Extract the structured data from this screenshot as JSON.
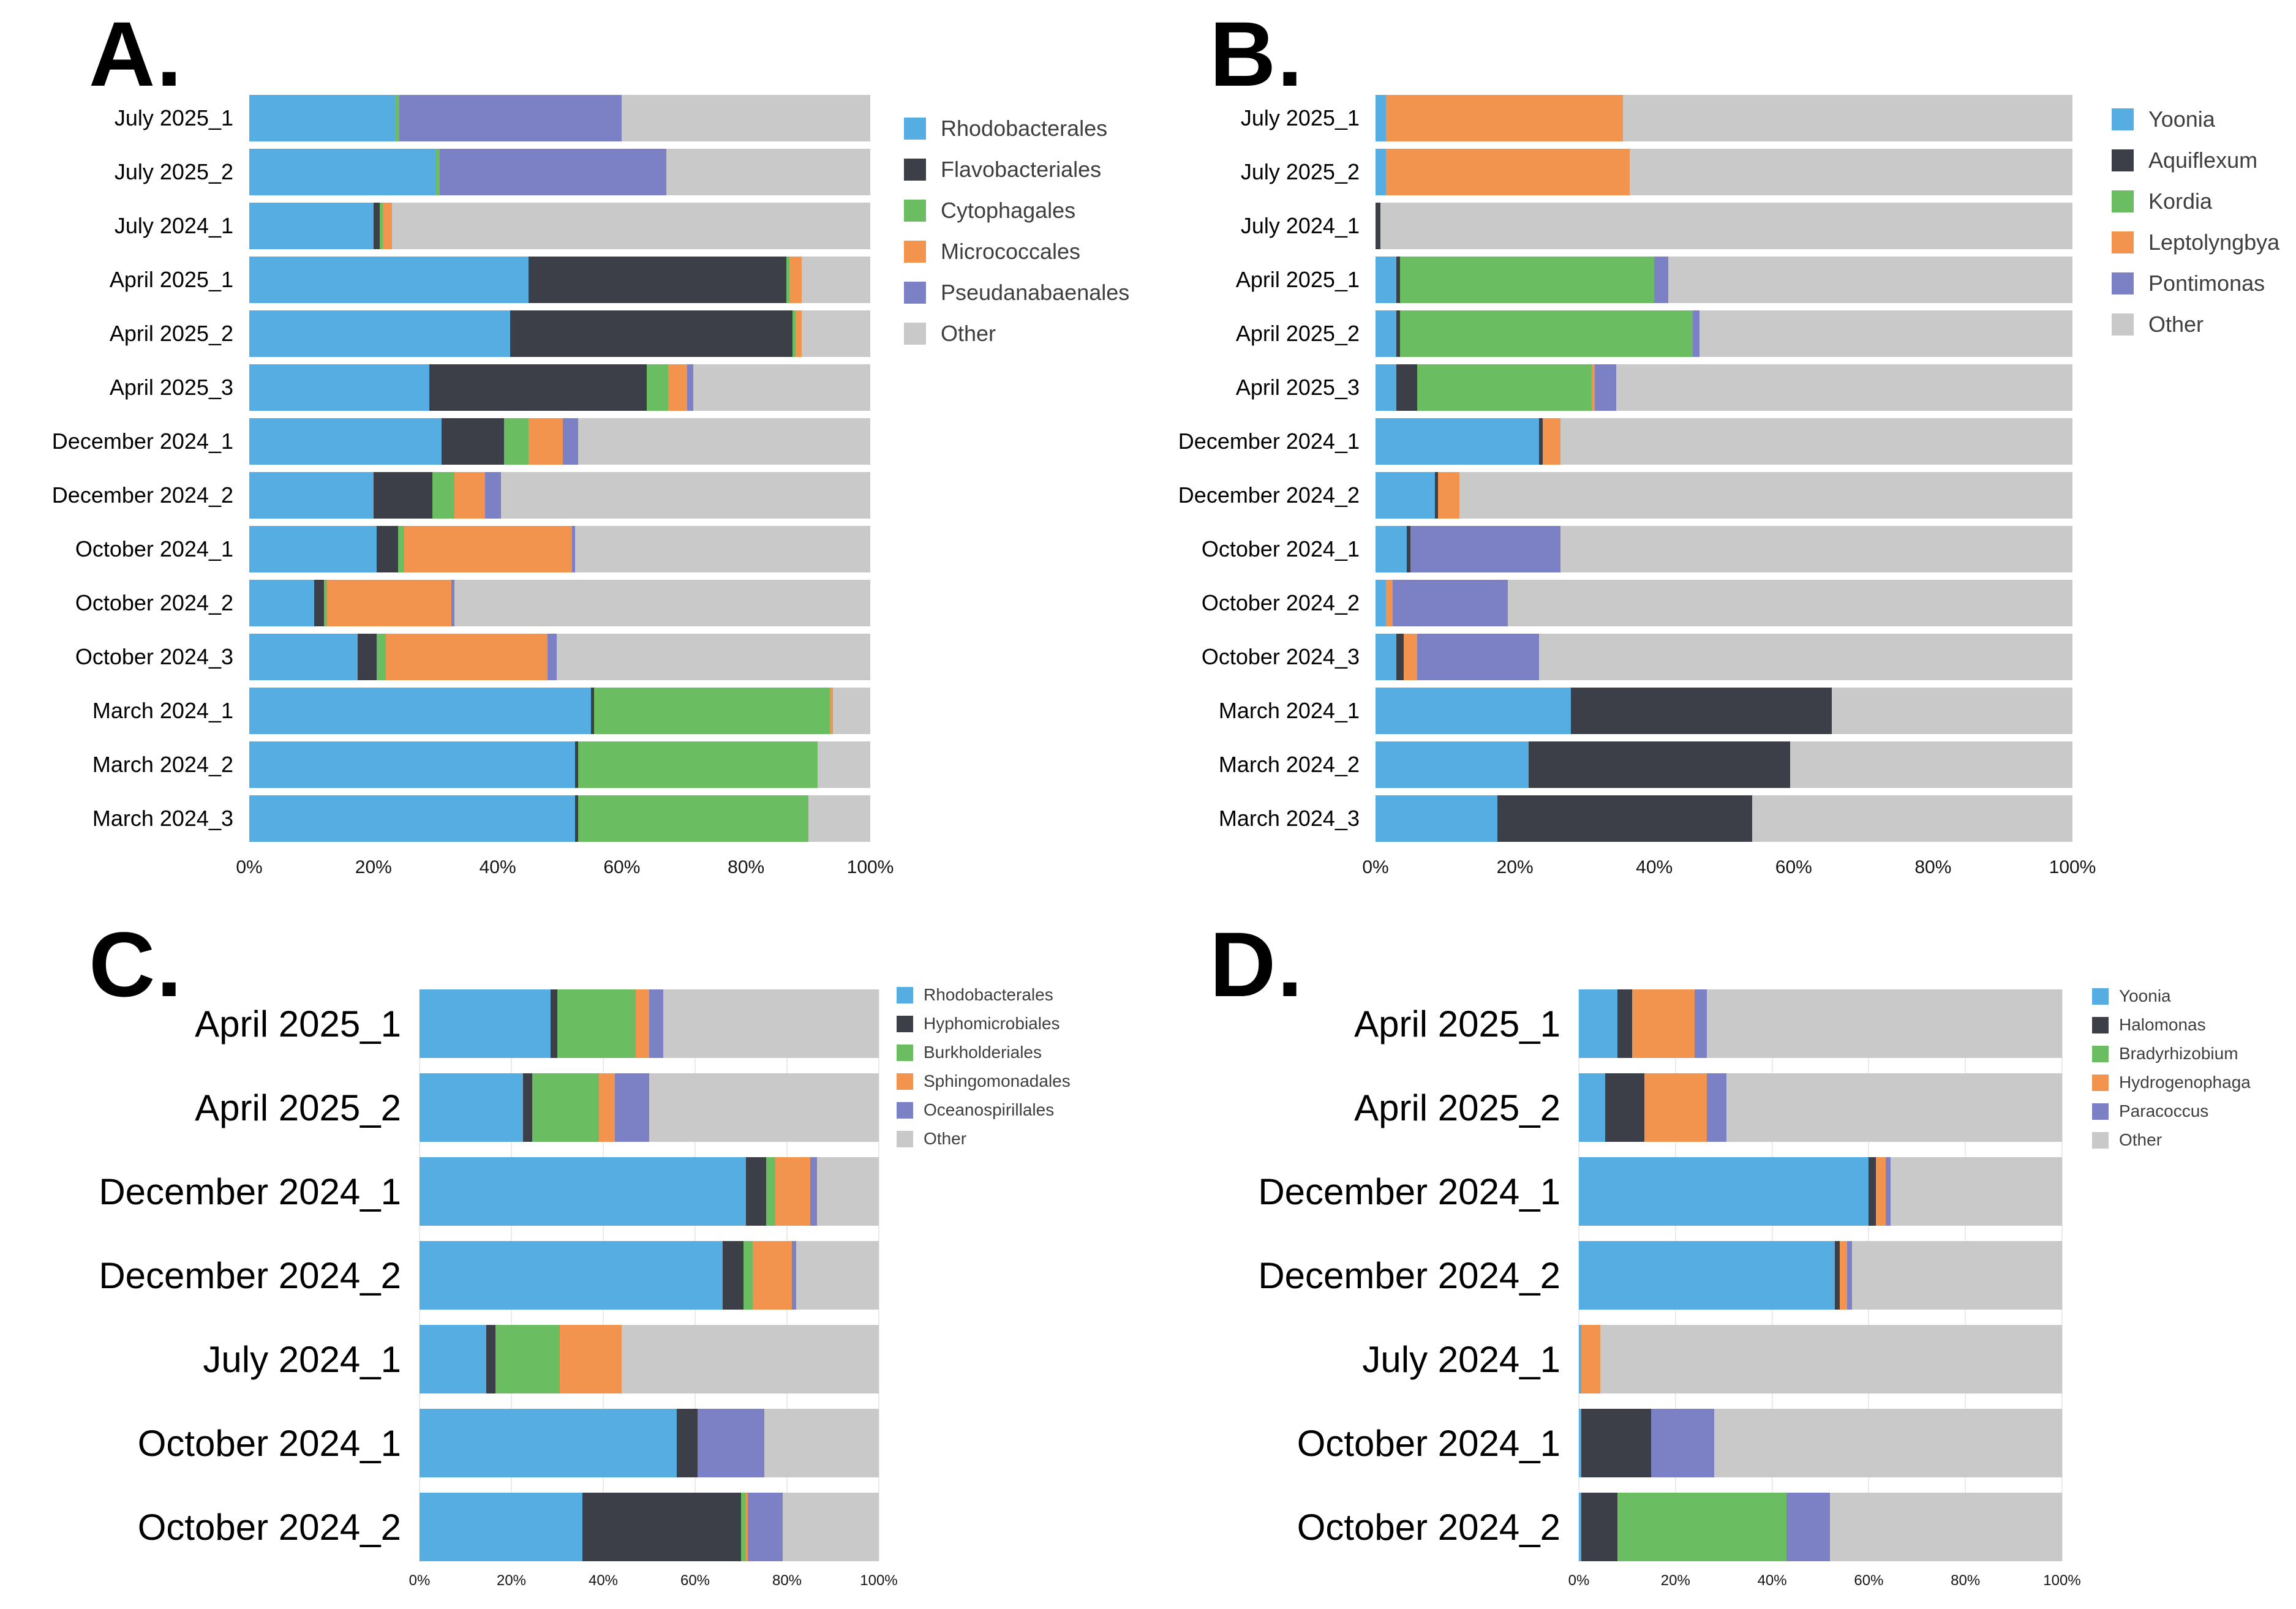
{
  "chart_data": [
    {
      "type": "bar",
      "panel_letter": "A.",
      "orientation": "horizontal",
      "stacked": true,
      "xlim": [
        0,
        100
      ],
      "x_ticks": [
        "0%",
        "20%",
        "40%",
        "60%",
        "80%",
        "100%"
      ],
      "legend_position": "right",
      "categories": [
        "July 2025_1",
        "July 2025_2",
        "July 2024_1",
        "April 2025_1",
        "April 2025_2",
        "April 2025_3",
        "December 2024_1",
        "December 2024_2",
        "October 2024_1",
        "October 2024_2",
        "October 2024_3",
        "March 2024_1",
        "March 2024_2",
        "March 2024_3"
      ],
      "series": [
        {
          "name": "Rhodobacterales",
          "color": "#55ade1",
          "values": [
            23.5,
            30,
            20,
            45,
            42,
            29,
            31,
            20,
            20.5,
            10.5,
            17.5,
            55,
            52.5,
            52.5
          ]
        },
        {
          "name": "Flavobacteriales",
          "color": "#3d3f48",
          "values": [
            0,
            0,
            1,
            41.5,
            45.5,
            35,
            10,
            9.5,
            3.5,
            1.5,
            3,
            0.5,
            0.5,
            0.5
          ]
        },
        {
          "name": "Cytophagales",
          "color": "#6abd60",
          "values": [
            0.7,
            0.7,
            0.5,
            0.5,
            0.5,
            3.5,
            4,
            3.5,
            1,
            0.5,
            1.5,
            38,
            38.5,
            37
          ]
        },
        {
          "name": "Micrococcales",
          "color": "#f3944e",
          "values": [
            0,
            0,
            1.5,
            2,
            1,
            3,
            5.5,
            5,
            27,
            20,
            26,
            0.5,
            0,
            0
          ]
        },
        {
          "name": "Pseudanabaenales",
          "color": "#7c80c4",
          "values": [
            35.8,
            36.5,
            0,
            0,
            0,
            1,
            2.5,
            2.5,
            0.5,
            0.5,
            1.5,
            0,
            0,
            0
          ]
        },
        {
          "name": "Other",
          "color": "#c9c9c9",
          "values": [
            40,
            32.8,
            77,
            11,
            11,
            28.5,
            47,
            59.5,
            47.5,
            67,
            50.5,
            6,
            8.5,
            10
          ]
        }
      ]
    },
    {
      "type": "bar",
      "panel_letter": "B.",
      "orientation": "horizontal",
      "stacked": true,
      "xlim": [
        0,
        100
      ],
      "x_ticks": [
        "0%",
        "20%",
        "40%",
        "60%",
        "80%",
        "100%"
      ],
      "legend_position": "right",
      "categories": [
        "July 2025_1",
        "July 2025_2",
        "July 2024_1",
        "April 2025_1",
        "April 2025_2",
        "April 2025_3",
        "December 2024_1",
        "December 2024_2",
        "October 2024_1",
        "October 2024_2",
        "October 2024_3",
        "March 2024_1",
        "March 2024_2",
        "March 2024_3"
      ],
      "series": [
        {
          "name": "Yoonia",
          "color": "#55ade1",
          "values": [
            1.5,
            1.5,
            0,
            3,
            3,
            3,
            23.5,
            8.5,
            4.5,
            1.5,
            3,
            28,
            22,
            17.5
          ]
        },
        {
          "name": "Aquiflexum",
          "color": "#3d3f48",
          "values": [
            0,
            0,
            0.7,
            0.5,
            0.5,
            3,
            0.5,
            0.5,
            0.5,
            0,
            1,
            37.5,
            37.5,
            36.5
          ]
        },
        {
          "name": "Kordia",
          "color": "#6abd60",
          "values": [
            0,
            0,
            0,
            36.5,
            42,
            25,
            0,
            0,
            0,
            0,
            0,
            0,
            0,
            0
          ]
        },
        {
          "name": "Leptolyngbya",
          "color": "#f3944e",
          "values": [
            34,
            35,
            0,
            0,
            0,
            0.5,
            2.5,
            3,
            0,
            1,
            2,
            0,
            0,
            0
          ]
        },
        {
          "name": "Pontimonas",
          "color": "#7c80c4",
          "values": [
            0,
            0,
            0,
            2,
            1,
            3,
            0,
            0,
            21.5,
            16.5,
            17.5,
            0,
            0,
            0
          ]
        },
        {
          "name": "Other",
          "color": "#c9c9c9",
          "values": [
            64.5,
            63.5,
            99.3,
            58,
            53.5,
            65.5,
            73.5,
            88,
            73.5,
            81,
            76.5,
            34.5,
            40.5,
            46
          ]
        }
      ]
    },
    {
      "type": "bar",
      "panel_letter": "C.",
      "orientation": "horizontal",
      "stacked": true,
      "xlim": [
        0,
        100
      ],
      "x_ticks": [
        "0%",
        "20%",
        "40%",
        "60%",
        "80%",
        "100%"
      ],
      "legend_position": "right",
      "grid": true,
      "categories": [
        "April 2025_1",
        "April 2025_2",
        "December 2024_1",
        "December 2024_2",
        "July 2024_1",
        "October 2024_1",
        "October 2024_2"
      ],
      "series": [
        {
          "name": "Rhodobacterales",
          "color": "#55ade1",
          "values": [
            28.5,
            22.5,
            71,
            66,
            14.5,
            56,
            35.5
          ]
        },
        {
          "name": "Hyphomicrobiales",
          "color": "#3d3f48",
          "values": [
            1.5,
            2,
            4.5,
            4.5,
            2,
            4.5,
            34.5
          ]
        },
        {
          "name": "Burkholderiales",
          "color": "#6abd60",
          "values": [
            17,
            14.5,
            2,
            2,
            14,
            0,
            1
          ]
        },
        {
          "name": "Sphingomonadales",
          "color": "#f3944e",
          "values": [
            3,
            3.5,
            7.5,
            8.5,
            13.5,
            0,
            0.5
          ]
        },
        {
          "name": "Oceanospirillales",
          "color": "#7c80c4",
          "values": [
            3,
            7.5,
            1.5,
            1,
            0,
            14.5,
            7.5
          ]
        },
        {
          "name": "Other",
          "color": "#c9c9c9",
          "values": [
            47,
            50,
            13.5,
            18,
            56,
            25,
            21
          ]
        }
      ]
    },
    {
      "type": "bar",
      "panel_letter": "D.",
      "orientation": "horizontal",
      "stacked": true,
      "xlim": [
        0,
        100
      ],
      "x_ticks": [
        "0%",
        "20%",
        "40%",
        "60%",
        "80%",
        "100%"
      ],
      "legend_position": "right",
      "grid": true,
      "categories": [
        "April 2025_1",
        "April 2025_2",
        "December 2024_1",
        "December 2024_2",
        "July 2024_1",
        "October 2024_1",
        "October 2024_2"
      ],
      "series": [
        {
          "name": "Yoonia",
          "color": "#55ade1",
          "values": [
            8,
            5.5,
            60,
            53,
            0.5,
            0.5,
            0.5
          ]
        },
        {
          "name": "Halomonas",
          "color": "#3d3f48",
          "values": [
            3,
            8,
            1.5,
            1,
            0,
            14.5,
            7.5
          ]
        },
        {
          "name": "Bradyrhizobium",
          "color": "#6abd60",
          "values": [
            0,
            0,
            0,
            0,
            0,
            0,
            35
          ]
        },
        {
          "name": "Hydrogenophaga",
          "color": "#f3944e",
          "values": [
            13,
            13,
            2,
            1.5,
            4,
            0,
            0
          ]
        },
        {
          "name": "Paracoccus",
          "color": "#7c80c4",
          "values": [
            2.5,
            4,
            1,
            1,
            0,
            13,
            9
          ]
        },
        {
          "name": "Other",
          "color": "#c9c9c9",
          "values": [
            73.5,
            69.5,
            35.5,
            43.5,
            95.5,
            72,
            48
          ]
        }
      ]
    }
  ]
}
